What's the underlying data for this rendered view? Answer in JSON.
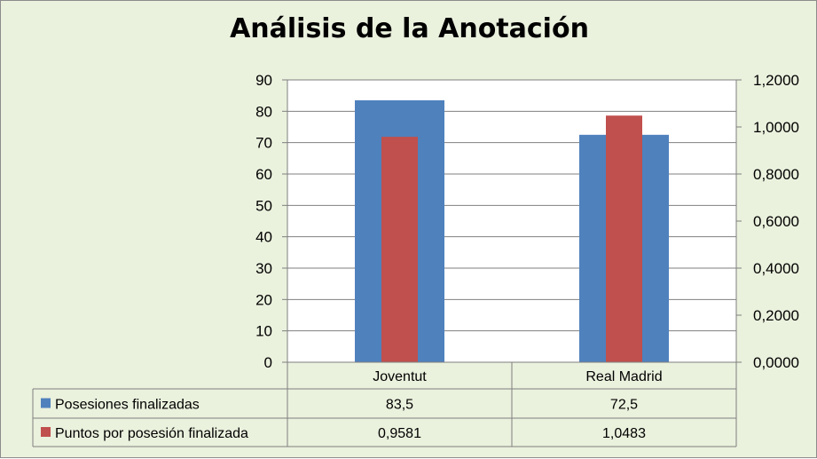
{
  "chart_data": {
    "type": "bar",
    "title": "Análisis de la Anotación",
    "categories": [
      "Joventut",
      "Real Madrid"
    ],
    "series": [
      {
        "name": "Posesiones finalizadas",
        "values": [
          83.5,
          72.5
        ],
        "labels": [
          "83,5",
          "72,5"
        ],
        "axis": "left",
        "color": "#4f81bd"
      },
      {
        "name": "Puntos por posesión finalizada",
        "values": [
          0.9581,
          1.0483
        ],
        "labels": [
          "0,9581",
          "1,0483"
        ],
        "axis": "right",
        "color": "#c0504d"
      }
    ],
    "y_left": {
      "min": 0,
      "max": 90,
      "step": 10,
      "ticks": [
        "0",
        "10",
        "20",
        "30",
        "40",
        "50",
        "60",
        "70",
        "80",
        "90"
      ]
    },
    "y_right": {
      "min": 0,
      "max": 1.2,
      "step": 0.2,
      "ticks": [
        "0,0000",
        "0,2000",
        "0,4000",
        "0,6000",
        "0,8000",
        "1,0000",
        "1,2000"
      ]
    },
    "grid": true,
    "legend": "data-table-below"
  },
  "colors": {
    "background": "#eaf1dd",
    "plot_area": "#ffffff",
    "gridline": "#7f7f7f"
  }
}
